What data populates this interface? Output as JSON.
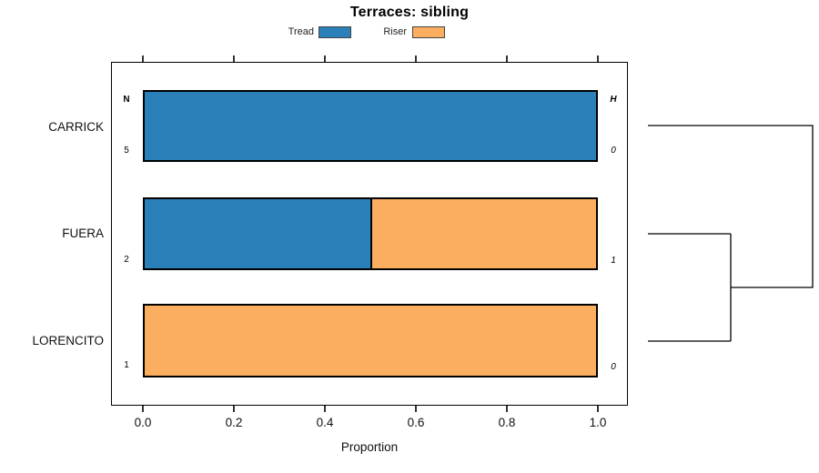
{
  "title": "Terraces: sibling",
  "legend": {
    "items": [
      {
        "label": "Tread",
        "color": "#2C80B9"
      },
      {
        "label": "Riser",
        "color": "#FBAD60"
      }
    ]
  },
  "axis": {
    "label": "Proportion",
    "ticks": [
      "0.0",
      "0.2",
      "0.4",
      "0.6",
      "0.8",
      "1.0"
    ]
  },
  "columns": {
    "n_header": "N",
    "h_header": "H"
  },
  "rows": [
    {
      "label": "CARRICK",
      "n": "5",
      "h": "0"
    },
    {
      "label": "FUERA",
      "n": "2",
      "h": "1"
    },
    {
      "label": "LORENCITO",
      "n": "1",
      "h": "0"
    }
  ],
  "chart_data": {
    "type": "bar",
    "orientation": "horizontal",
    "stacked": true,
    "title": "Terraces: sibling",
    "categories": [
      "CARRICK",
      "FUERA",
      "LORENCITO"
    ],
    "series": [
      {
        "name": "Tread",
        "color": "#2C80B9",
        "values": [
          1.0,
          0.5,
          0.0
        ]
      },
      {
        "name": "Riser",
        "color": "#FBAD60",
        "values": [
          0.0,
          0.5,
          1.0
        ]
      }
    ],
    "row_annotations": {
      "N": [
        5,
        2,
        1
      ],
      "H": [
        0,
        1,
        0
      ]
    },
    "xlabel": "Proportion",
    "xlim": [
      0,
      1
    ],
    "xticks": [
      0.0,
      0.2,
      0.4,
      0.6,
      0.8,
      1.0
    ],
    "legend_position": "top-center",
    "grid": false,
    "dendrogram": {
      "side": "right",
      "structure": "((FUERA,LORENCITO),CARRICK)"
    }
  }
}
